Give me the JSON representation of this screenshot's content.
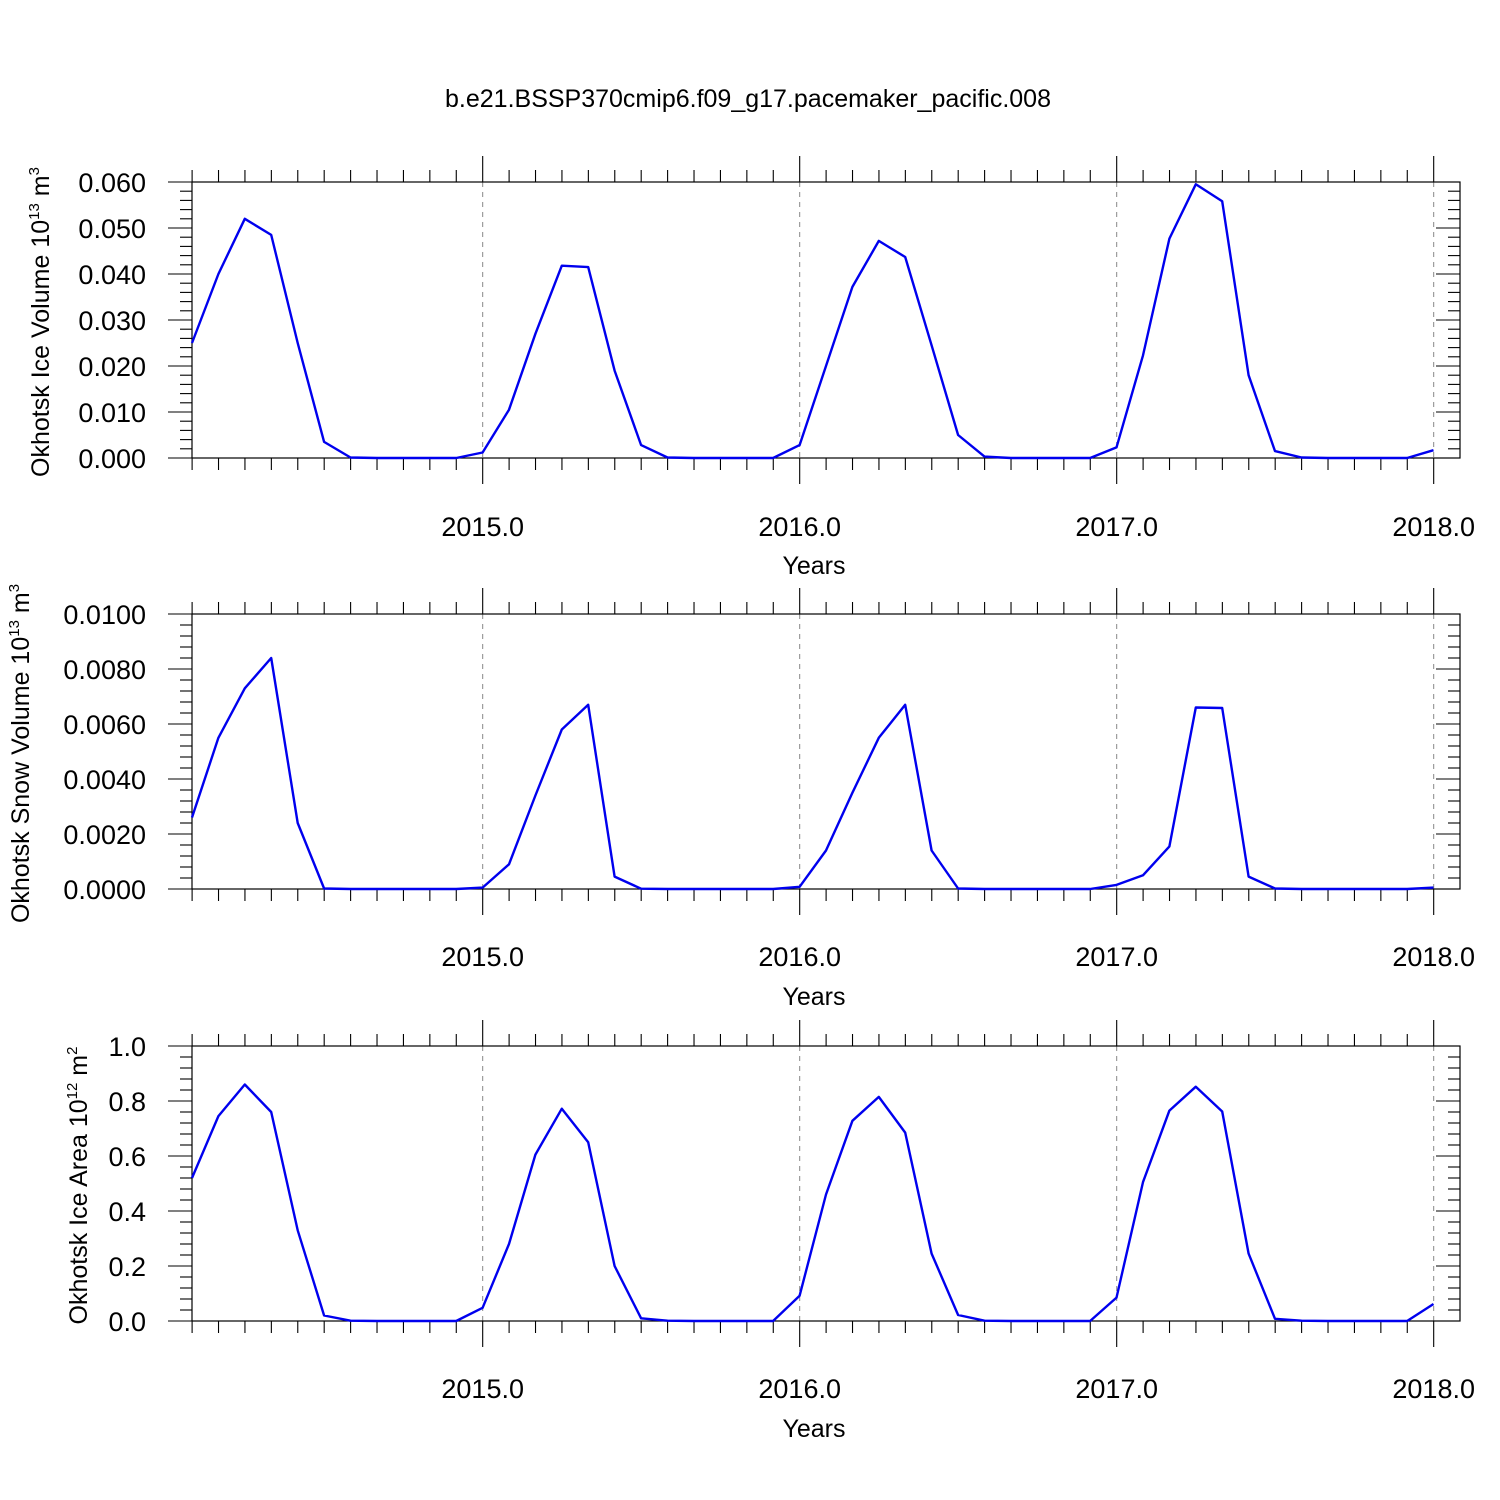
{
  "title": "b.e21.BSSP370cmip6.f09_g17.pacemaker_pacific.008",
  "colors": {
    "line": "#0000ee",
    "axis": "#000000",
    "grid": "#888888"
  },
  "chart_data": [
    {
      "type": "line",
      "name": "ice-volume",
      "ylabel": {
        "text": "Okhotsk Ice Volume 10",
        "sup_exp": "13",
        "unit": " m",
        "sup_unit": "3"
      },
      "xlabel": "Years",
      "xlim": [
        2014.083,
        2018.083
      ],
      "ylim": [
        0,
        0.06
      ],
      "yticks": [
        0.0,
        0.01,
        0.02,
        0.03,
        0.04,
        0.05,
        0.06
      ],
      "yticklabels": [
        "0.000",
        "0.010",
        "0.020",
        "0.030",
        "0.040",
        "0.050",
        "0.060"
      ],
      "xticks": [
        2015,
        2016,
        2017,
        2018
      ],
      "xticklabels": [
        "2015.0",
        "2016.0",
        "2017.0",
        "2018.0"
      ],
      "grid": "vertical-dashed-at-years",
      "x_start": 2014.083,
      "x_step": 0.08333,
      "values": [
        0.025,
        0.04,
        0.052,
        0.0485,
        0.025,
        0.0035,
        0.0001,
        0.0,
        0.0,
        0.0,
        0.0,
        0.0012,
        0.0105,
        0.027,
        0.0418,
        0.0415,
        0.019,
        0.0028,
        0.0001,
        0.0,
        0.0,
        0.0,
        0.0,
        0.0028,
        0.02,
        0.0372,
        0.0472,
        0.0437,
        0.0245,
        0.005,
        0.0003,
        0.0,
        0.0,
        0.0,
        0.0,
        0.0023,
        0.0223,
        0.0477,
        0.0595,
        0.0558,
        0.018,
        0.0015,
        0.0001,
        0.0,
        0.0,
        0.0,
        0.0,
        0.0017
      ]
    },
    {
      "type": "line",
      "name": "snow-volume",
      "ylabel": {
        "text": "Okhotsk Snow Volume 10",
        "sup_exp": "13",
        "unit": " m",
        "sup_unit": "3"
      },
      "xlabel": "Years",
      "xlim": [
        2014.083,
        2018.083
      ],
      "ylim": [
        0,
        0.01
      ],
      "yticks": [
        0.0,
        0.002,
        0.004,
        0.006,
        0.008,
        0.01
      ],
      "yticklabels": [
        "0.0000",
        "0.0020",
        "0.0040",
        "0.0060",
        "0.0080",
        "0.0100"
      ],
      "xticks": [
        2015,
        2016,
        2017,
        2018
      ],
      "xticklabels": [
        "2015.0",
        "2016.0",
        "2017.0",
        "2018.0"
      ],
      "grid": "vertical-dashed-at-years",
      "x_start": 2014.083,
      "x_step": 0.08333,
      "values": [
        0.0026,
        0.0055,
        0.0073,
        0.0084,
        0.0024,
        2e-05,
        0.0,
        0.0,
        0.0,
        0.0,
        0.0,
        5e-05,
        0.0009,
        0.0034,
        0.0058,
        0.0067,
        0.00045,
        1e-05,
        0.0,
        0.0,
        0.0,
        0.0,
        0.0,
        8e-05,
        0.0014,
        0.0035,
        0.0055,
        0.0067,
        0.0014,
        2e-05,
        0.0,
        0.0,
        0.0,
        0.0,
        0.0,
        0.00015,
        0.0005,
        0.00155,
        0.0066,
        0.00658,
        0.00045,
        2e-05,
        0.0,
        0.0,
        0.0,
        0.0,
        0.0,
        5e-05
      ]
    },
    {
      "type": "line",
      "name": "ice-area",
      "ylabel": {
        "text": "Okhotsk Ice Area 10",
        "sup_exp": "12",
        "unit": " m",
        "sup_unit": "2"
      },
      "xlabel": "Years",
      "xlim": [
        2014.083,
        2018.083
      ],
      "ylim": [
        0,
        1.0
      ],
      "yticks": [
        0.0,
        0.2,
        0.4,
        0.6,
        0.8,
        1.0
      ],
      "yticklabels": [
        "0.0",
        "0.2",
        "0.4",
        "0.6",
        "0.8",
        "1.0"
      ],
      "xticks": [
        2015,
        2016,
        2017,
        2018
      ],
      "xticklabels": [
        "2015.0",
        "2016.0",
        "2017.0",
        "2018.0"
      ],
      "grid": "vertical-dashed-at-years",
      "x_start": 2014.083,
      "x_step": 0.08333,
      "values": [
        0.52,
        0.745,
        0.86,
        0.76,
        0.33,
        0.02,
        0.001,
        0.0,
        0.0,
        0.0,
        0.0,
        0.048,
        0.28,
        0.605,
        0.772,
        0.65,
        0.2,
        0.01,
        0.001,
        0.0,
        0.0,
        0.0,
        0.0,
        0.092,
        0.46,
        0.728,
        0.815,
        0.685,
        0.245,
        0.022,
        0.001,
        0.0,
        0.0,
        0.0,
        0.0,
        0.085,
        0.505,
        0.765,
        0.852,
        0.762,
        0.245,
        0.008,
        0.001,
        0.0,
        0.0,
        0.0,
        0.0,
        0.062
      ]
    }
  ]
}
